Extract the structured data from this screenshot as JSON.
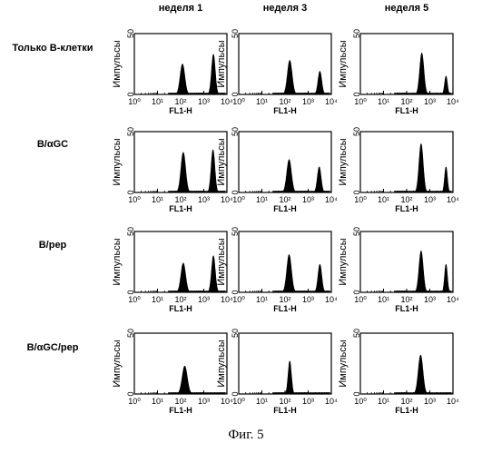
{
  "figure": {
    "caption": "Фиг. 5",
    "style": {
      "ink": "#000000",
      "background": "#ffffff"
    }
  },
  "chart_data": {
    "type": "histogram-grid",
    "columns": [
      "неделя 1",
      "неделя 3",
      "неделя 5"
    ],
    "rows": [
      "Только В-клетки",
      "В/αGC",
      "В/pep",
      "В/αGC/pep"
    ],
    "xlabel": "FL1-H",
    "ylabel": "Импульсы",
    "x_scale": "log",
    "x_ticks": [
      "10⁰",
      "10¹",
      "10²",
      "10³",
      "10⁴"
    ],
    "xlim": [
      1,
      10000
    ],
    "y_ticks": [
      "0",
      "50"
    ],
    "ylim": [
      0,
      50
    ],
    "panels": [
      [
        {
          "peaks": [
            {
              "x": 120,
              "height": 25,
              "sigma": 0.1
            },
            {
              "x": 2600,
              "height": 33,
              "sigma": 0.08
            }
          ]
        },
        {
          "peaks": [
            {
              "x": 160,
              "height": 28,
              "sigma": 0.1
            },
            {
              "x": 3200,
              "height": 19,
              "sigma": 0.08
            }
          ]
        },
        {
          "peaks": [
            {
              "x": 450,
              "height": 34,
              "sigma": 0.09
            },
            {
              "x": 5000,
              "height": 15,
              "sigma": 0.06
            }
          ]
        }
      ],
      [
        {
          "peaks": [
            {
              "x": 130,
              "height": 33,
              "sigma": 0.1
            },
            {
              "x": 2500,
              "height": 35,
              "sigma": 0.08
            }
          ]
        },
        {
          "peaks": [
            {
              "x": 150,
              "height": 27,
              "sigma": 0.1
            },
            {
              "x": 3000,
              "height": 21,
              "sigma": 0.08
            }
          ]
        },
        {
          "peaks": [
            {
              "x": 420,
              "height": 40,
              "sigma": 0.09
            },
            {
              "x": 5000,
              "height": 21,
              "sigma": 0.06
            }
          ]
        }
      ],
      [
        {
          "peaks": [
            {
              "x": 130,
              "height": 24,
              "sigma": 0.1
            },
            {
              "x": 2600,
              "height": 30,
              "sigma": 0.08
            }
          ]
        },
        {
          "peaks": [
            {
              "x": 150,
              "height": 31,
              "sigma": 0.1
            },
            {
              "x": 3200,
              "height": 23,
              "sigma": 0.08
            }
          ]
        },
        {
          "peaks": [
            {
              "x": 420,
              "height": 34,
              "sigma": 0.09
            },
            {
              "x": 5000,
              "height": 23,
              "sigma": 0.06
            }
          ]
        }
      ],
      [
        {
          "peaks": [
            {
              "x": 150,
              "height": 23,
              "sigma": 0.11
            }
          ]
        },
        {
          "peaks": [
            {
              "x": 160,
              "height": 27,
              "sigma": 0.07
            }
          ]
        },
        {
          "peaks": [
            {
              "x": 400,
              "height": 32,
              "sigma": 0.1
            }
          ]
        }
      ]
    ]
  }
}
